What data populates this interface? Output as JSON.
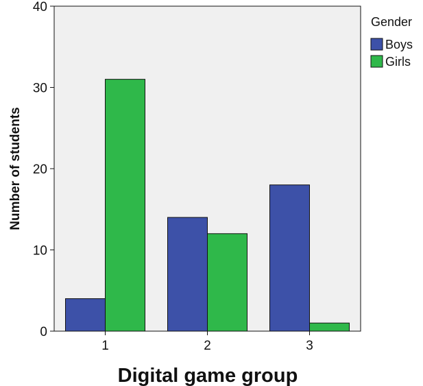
{
  "chart_data": {
    "type": "bar",
    "title": "",
    "xlabel": "Digital game group",
    "ylabel": "Number of students",
    "categories": [
      "1",
      "2",
      "3"
    ],
    "series": [
      {
        "name": "Boys",
        "values": [
          4,
          14,
          18
        ],
        "color": "#3d51a8"
      },
      {
        "name": "Girls",
        "values": [
          31,
          12,
          1
        ],
        "color": "#2fb84a"
      }
    ],
    "ylim": [
      0,
      40
    ],
    "yticks": [
      0,
      10,
      20,
      30,
      40
    ],
    "grid": false,
    "plot_background": "#f0f0f0",
    "legend": {
      "title": "Gender",
      "placement": "top-right"
    }
  }
}
